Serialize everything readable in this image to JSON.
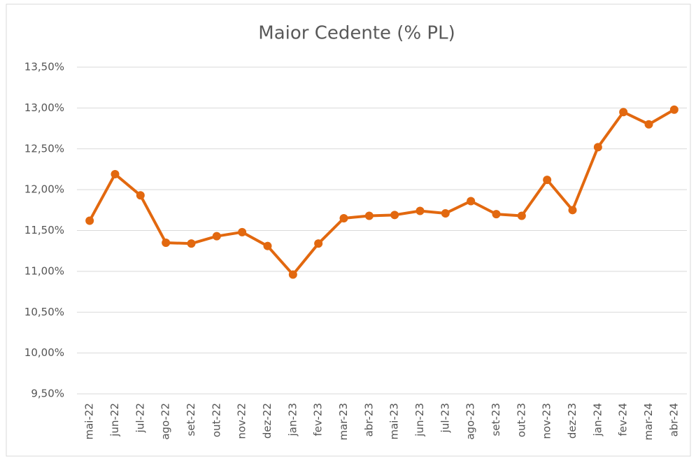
{
  "chart_data": {
    "type": "line",
    "title": "Maior Cedente (% PL)",
    "categories": [
      "mai-22",
      "jun-22",
      "jul-22",
      "ago-22",
      "set-22",
      "out-22",
      "nov-22",
      "dez-22",
      "jan-23",
      "fev-23",
      "mar-23",
      "abr-23",
      "mai-23",
      "jun-23",
      "jul-23",
      "ago-23",
      "set-23",
      "out-23",
      "nov-23",
      "dez-23",
      "jan-24",
      "fev-24",
      "mar-24",
      "abr-24"
    ],
    "series": [
      {
        "name": "Maior Cedente",
        "color": "#e2680f",
        "values": [
          11.62,
          12.19,
          11.93,
          11.35,
          11.34,
          11.43,
          11.48,
          11.31,
          10.96,
          11.34,
          11.65,
          11.68,
          11.69,
          11.74,
          11.71,
          11.86,
          11.7,
          11.68,
          12.12,
          11.75,
          12.52,
          12.95,
          12.8,
          12.98
        ]
      }
    ],
    "ylim": [
      9.5,
      13.5
    ],
    "yticks": [
      {
        "value": 9.5,
        "label": "9,50%"
      },
      {
        "value": 10,
        "label": "10,00%"
      },
      {
        "value": 10.5,
        "label": "10,50%"
      },
      {
        "value": 11,
        "label": "11,00%"
      },
      {
        "value": 11.5,
        "label": "11,50%"
      },
      {
        "value": 12,
        "label": "12,00%"
      },
      {
        "value": 12.5,
        "label": "12,50%"
      },
      {
        "value": 13,
        "label": "13,00%"
      },
      {
        "value": 13.5,
        "label": "13,50%"
      }
    ],
    "grid": true
  }
}
